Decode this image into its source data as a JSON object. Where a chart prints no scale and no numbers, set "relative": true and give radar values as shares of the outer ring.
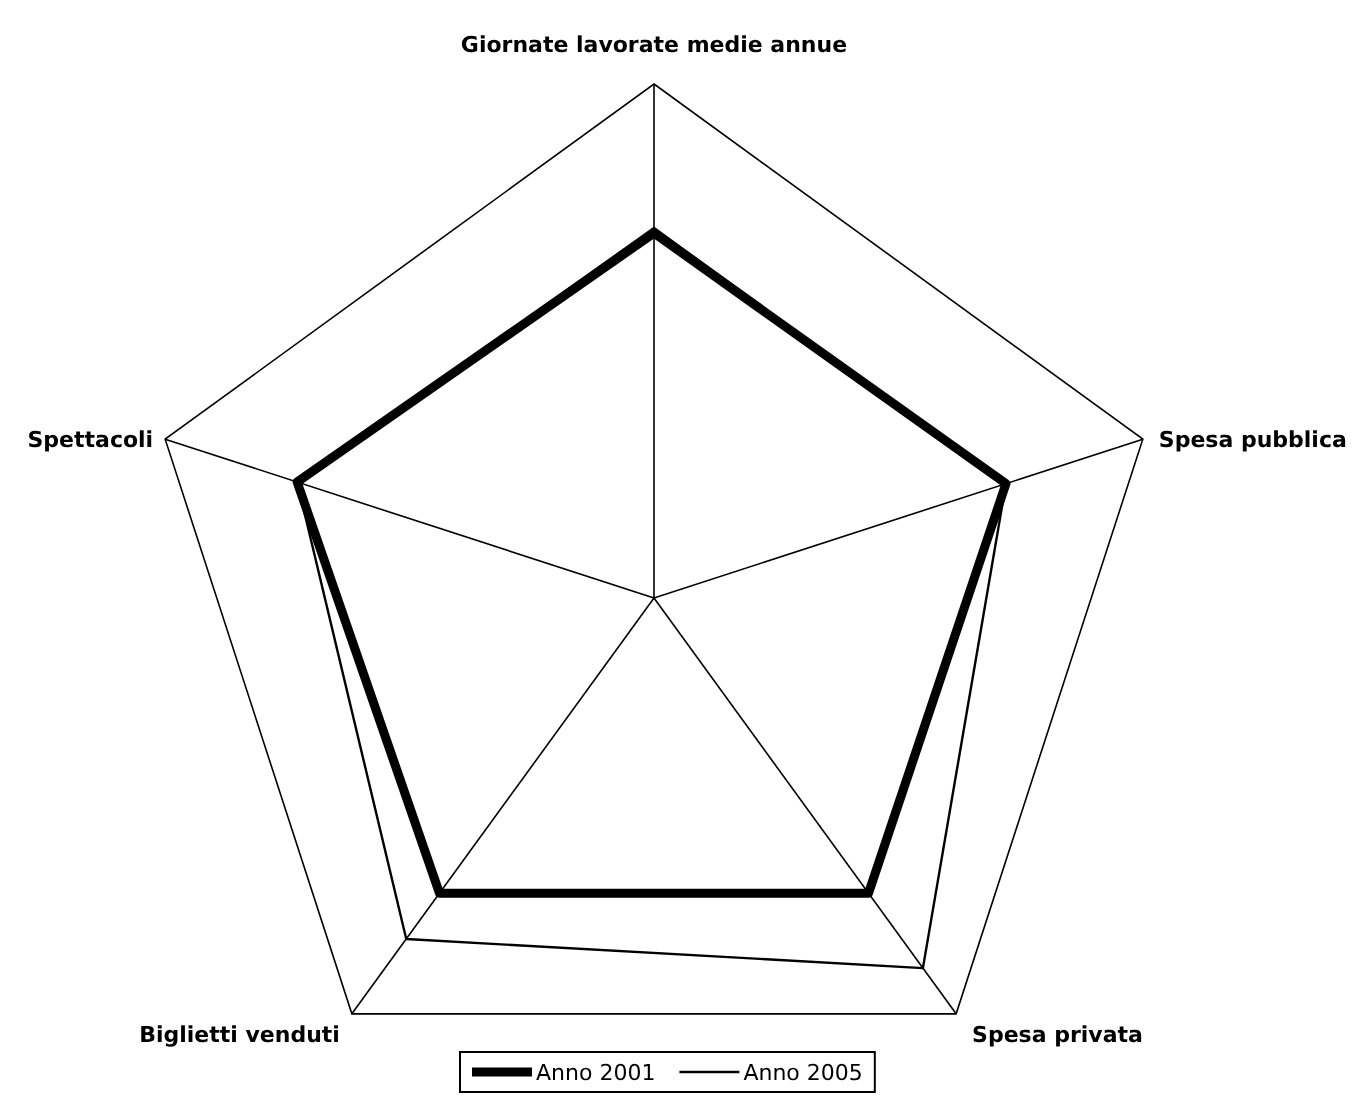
{
  "chart_data": {
    "type": "radar",
    "relative": true,
    "categories": [
      "Giornate lavorate medie annue",
      "Spesa pubblica",
      "Spesa privata",
      "Biglietti venduti",
      "Spettacoli"
    ],
    "series": [
      {
        "name": "Anno 2001",
        "color": "#000000",
        "values": [
          0.71,
          0.72,
          0.71,
          0.71,
          0.73
        ]
      },
      {
        "name": "Anno 2005",
        "color": "#000000",
        "values": [
          0.72,
          0.72,
          0.89,
          0.82,
          0.73
        ]
      }
    ],
    "legend": "bottom",
    "grid": true
  }
}
